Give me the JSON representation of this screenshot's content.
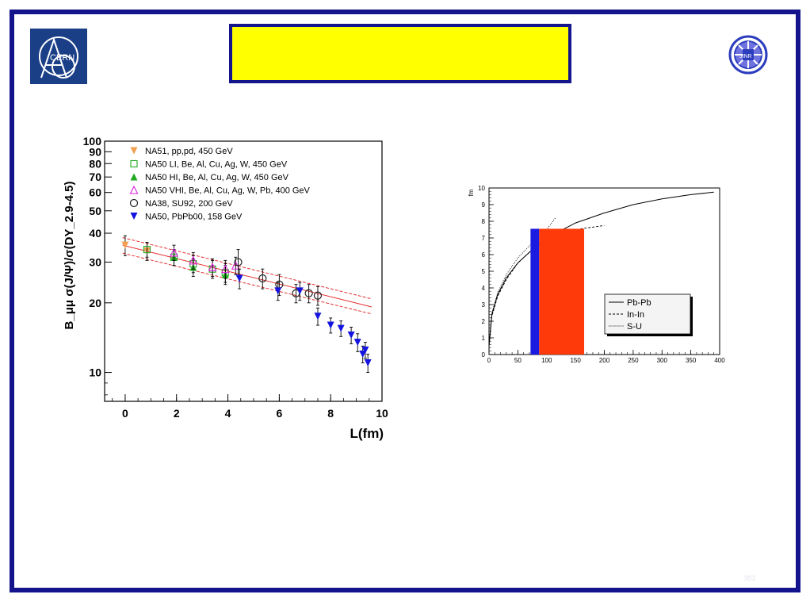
{
  "slide": {
    "title": "",
    "page_number": "383",
    "left_logo": {
      "icon": "cern-logo",
      "text": "CERN",
      "color": "#1a3f87"
    },
    "right_logo": {
      "icon": "jinr-logo",
      "text": "JINR",
      "color": "#2c3dbd"
    },
    "frame_color": "#14148c",
    "title_box_color": "#ffff00"
  },
  "chart_data": [
    {
      "type": "scatter",
      "title": "",
      "xlabel": "L(fm)",
      "ylabel": "B_μμ σ(J/Ψ)/σ(DY_2.9-4.5)",
      "xlim": [
        -0.8,
        10
      ],
      "ylim": [
        7.5,
        100
      ],
      "yscale": "log",
      "x_ticks": [
        "0",
        "2",
        "4",
        "6",
        "8",
        "10"
      ],
      "y_ticks": [
        "10",
        "20",
        "30",
        "40",
        "50",
        "60",
        "70",
        "80",
        "90",
        "100"
      ],
      "legend_position": "top-left",
      "series": [
        {
          "name": "NA51, pp,pd, 450 GeV",
          "marker": "triangle-down",
          "color": "#f0a050",
          "x": [
            0.0,
            0.85
          ],
          "y": [
            35.5,
            33.5
          ],
          "err": [
            3.5,
            3
          ]
        },
        {
          "name": "NA50 LI, Be, Al, Cu, Ag, W, 450 GeV",
          "marker": "square-open",
          "color": "#22aa22",
          "x": [
            0.85,
            1.9,
            2.65,
            3.4,
            3.9
          ],
          "y": [
            34,
            31.5,
            29.5,
            28,
            27
          ],
          "err": [
            2.5,
            2.5,
            2.5,
            2.5,
            2.5
          ]
        },
        {
          "name": "NA50 HI, Be, Al, Cu, Ag, W, 450 GeV",
          "marker": "triangle-up",
          "color": "#22aa22",
          "x": [
            1.9,
            2.65,
            3.9
          ],
          "y": [
            31.5,
            28.5,
            26.5
          ],
          "err": [
            2.5,
            2.5,
            2.5
          ]
        },
        {
          "name": "NA50 VHI, Be, Al, Cu, Ag, W, Pb, 400 GeV",
          "marker": "triangle-up-open",
          "color": "#dd22dd",
          "x": [
            1.9,
            2.65,
            3.4,
            3.9,
            4.3
          ],
          "y": [
            33,
            30.5,
            28.5,
            28,
            29
          ],
          "err": [
            2.5,
            2.5,
            2.5,
            2.5,
            2.5
          ]
        },
        {
          "name": "NA38, SU92, 200 GeV",
          "marker": "circle-open",
          "color": "#222222",
          "x": [
            4.4,
            5.35,
            6.0,
            6.65,
            7.15,
            7.5
          ],
          "y": [
            30,
            25.5,
            24,
            22,
            22,
            21.5
          ],
          "err": [
            4,
            2.5,
            2.5,
            2,
            2,
            2
          ]
        },
        {
          "name": "NA50, PbPb00, 158 GeV",
          "marker": "triangle-down",
          "color": "#1414e0",
          "x": [
            4.45,
            5.95,
            6.8,
            7.5,
            8.0,
            8.4,
            8.8,
            9.05,
            9.25,
            9.35,
            9.45
          ],
          "y": [
            25.5,
            22.5,
            22.5,
            17.5,
            16,
            15.5,
            14.5,
            13.5,
            12,
            12.5,
            11
          ],
          "err": [
            2.5,
            2,
            2,
            1.5,
            1.2,
            1.2,
            1.2,
            1.2,
            1,
            1,
            1
          ]
        }
      ],
      "fit": {
        "color": "#e63030",
        "line": [
          [
            -0.1,
            35.5
          ],
          [
            9.6,
            19.2
          ]
        ],
        "band_upper": [
          [
            -0.1,
            38.3
          ],
          [
            9.6,
            20.8
          ]
        ],
        "band_lower": [
          [
            -0.1,
            32.8
          ],
          [
            9.6,
            17.9
          ]
        ]
      }
    },
    {
      "type": "line",
      "title": "",
      "xlabel": "",
      "ylabel": "fm",
      "xlim": [
        0,
        400
      ],
      "ylim": [
        0,
        10
      ],
      "x_ticks": [
        "0",
        "50",
        "100",
        "150",
        "200",
        "250",
        "300",
        "350",
        "400"
      ],
      "y_ticks": [
        "0",
        "1",
        "2",
        "3",
        "4",
        "5",
        "6",
        "7",
        "8",
        "9",
        "10"
      ],
      "legend_position": "bottom-right",
      "series": [
        {
          "name": "Pb-Pb",
          "style": "solid",
          "x": [
            0,
            5,
            15,
            30,
            50,
            75,
            100,
            150,
            200,
            250,
            300,
            350,
            390
          ],
          "y": [
            0.5,
            2.4,
            3.6,
            4.6,
            5.5,
            6.3,
            7.0,
            7.9,
            8.5,
            9.0,
            9.35,
            9.6,
            9.75
          ]
        },
        {
          "name": "In-In",
          "style": "dashed",
          "x": [
            0,
            5,
            15,
            30,
            50,
            75,
            100,
            130,
            160,
            200
          ],
          "y": [
            0.5,
            2.3,
            3.5,
            4.5,
            5.5,
            6.3,
            6.9,
            7.3,
            7.55,
            7.75
          ]
        },
        {
          "name": "S-U",
          "style": "dotted",
          "x": [
            0,
            5,
            15,
            30,
            50,
            75,
            100,
            115
          ],
          "y": [
            0.5,
            2.5,
            3.7,
            4.8,
            5.8,
            6.7,
            7.5,
            8.2
          ]
        }
      ],
      "bands": [
        {
          "x0": 72,
          "x1": 87,
          "y": 7.55,
          "color": "#1a1ae0"
        },
        {
          "x0": 87,
          "x1": 165,
          "y": 7.55,
          "color": "#ff3a0a"
        }
      ]
    }
  ]
}
